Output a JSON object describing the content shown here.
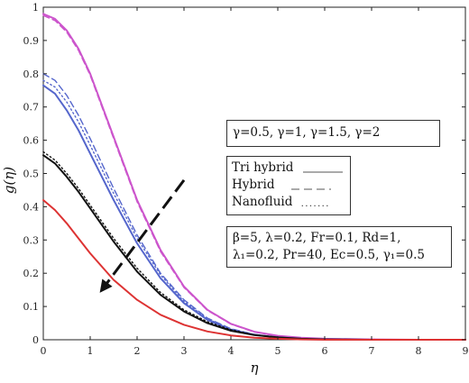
{
  "chart_data": {
    "type": "line",
    "xlabel": "η",
    "ylabel": "g(η)",
    "xlim": [
      0,
      9
    ],
    "ylim": [
      0,
      1
    ],
    "x_ticks": [
      "0",
      "1",
      "2",
      "3",
      "4",
      "5",
      "6",
      "7",
      "8",
      "9"
    ],
    "y_ticks": [
      "0",
      "0.1",
      "0.2",
      "0.3",
      "0.4",
      "0.5",
      "0.6",
      "0.7",
      "0.8",
      "0.9",
      "1"
    ],
    "grid": false,
    "series": [
      {
        "color": "#cc55cc",
        "style": "solid",
        "x": [
          0,
          0.25,
          0.5,
          0.75,
          1,
          1.5,
          2,
          2.5,
          3,
          3.5,
          4,
          4.5,
          5,
          5.5,
          6,
          7,
          8,
          9
        ],
        "values": [
          0.98,
          0.965,
          0.93,
          0.875,
          0.8,
          0.61,
          0.42,
          0.27,
          0.16,
          0.09,
          0.048,
          0.024,
          0.012,
          0.006,
          0.003,
          0.001,
          0.0,
          0.0
        ]
      },
      {
        "color": "#cc55cc",
        "style": "dashed",
        "x": [
          0,
          0.25,
          0.5,
          0.75,
          1,
          1.5,
          2,
          2.5,
          3,
          3.5,
          4,
          4.5,
          5,
          5.5,
          6,
          7,
          8,
          9
        ],
        "values": [
          0.975,
          0.96,
          0.925,
          0.87,
          0.795,
          0.605,
          0.415,
          0.265,
          0.157,
          0.088,
          0.047,
          0.023,
          0.011,
          0.005,
          0.003,
          0.001,
          0.0,
          0.0
        ]
      },
      {
        "color": "#5566cc",
        "style": "solid",
        "x": [
          0,
          0.25,
          0.5,
          0.75,
          1,
          1.5,
          2,
          2.5,
          3,
          3.5,
          4,
          4.5,
          5,
          5.5,
          6,
          7,
          8,
          9
        ],
        "values": [
          0.765,
          0.74,
          0.69,
          0.63,
          0.56,
          0.42,
          0.29,
          0.185,
          0.11,
          0.06,
          0.03,
          0.015,
          0.007,
          0.003,
          0.001,
          0.0,
          0.0,
          0.0
        ]
      },
      {
        "color": "#5566cc",
        "style": "dashed",
        "x": [
          0,
          0.25,
          0.5,
          0.75,
          1,
          1.5,
          2,
          2.5,
          3,
          3.5,
          4,
          4.5,
          5,
          5.5,
          6,
          7,
          8,
          9
        ],
        "values": [
          0.8,
          0.78,
          0.735,
          0.675,
          0.605,
          0.455,
          0.315,
          0.2,
          0.12,
          0.065,
          0.033,
          0.016,
          0.007,
          0.003,
          0.001,
          0.0,
          0.0,
          0.0
        ]
      },
      {
        "color": "#5566cc",
        "style": "dotted",
        "x": [
          0,
          0.25,
          0.5,
          0.75,
          1,
          1.5,
          2,
          2.5,
          3,
          3.5,
          4,
          4.5,
          5,
          5.5,
          6,
          7,
          8,
          9
        ],
        "values": [
          0.78,
          0.76,
          0.715,
          0.655,
          0.585,
          0.44,
          0.305,
          0.195,
          0.115,
          0.063,
          0.032,
          0.015,
          0.007,
          0.003,
          0.001,
          0.0,
          0.0,
          0.0
        ]
      },
      {
        "color": "#111111",
        "style": "solid",
        "x": [
          0,
          0.25,
          0.5,
          0.75,
          1,
          1.5,
          2,
          2.5,
          3,
          3.5,
          4,
          4.5,
          5,
          5.5,
          6,
          7,
          8,
          9
        ],
        "values": [
          0.555,
          0.53,
          0.49,
          0.445,
          0.395,
          0.295,
          0.205,
          0.135,
          0.085,
          0.05,
          0.027,
          0.014,
          0.007,
          0.003,
          0.001,
          0.0,
          0.0,
          0.0
        ]
      },
      {
        "color": "#111111",
        "style": "dotted",
        "x": [
          0,
          0.25,
          0.5,
          0.75,
          1,
          1.5,
          2,
          2.5,
          3,
          3.5,
          4,
          4.5,
          5,
          5.5,
          6,
          7,
          8,
          9
        ],
        "values": [
          0.565,
          0.54,
          0.5,
          0.455,
          0.405,
          0.305,
          0.215,
          0.142,
          0.09,
          0.054,
          0.03,
          0.015,
          0.007,
          0.003,
          0.001,
          0.0,
          0.0,
          0.0
        ]
      },
      {
        "color": "#dd3333",
        "style": "solid",
        "x": [
          0,
          0.25,
          0.5,
          0.75,
          1,
          1.5,
          2,
          2.5,
          3,
          3.5,
          4,
          4.5,
          5,
          5.5,
          6,
          7,
          8,
          9
        ],
        "values": [
          0.42,
          0.39,
          0.35,
          0.305,
          0.26,
          0.18,
          0.12,
          0.075,
          0.045,
          0.025,
          0.013,
          0.006,
          0.003,
          0.001,
          0.0,
          0.0,
          0.0,
          0.0
        ]
      }
    ],
    "annotations": {
      "gamma_text": "γ=0.5, γ=1, γ=1.5, γ=2",
      "legend": [
        {
          "label": "Tri hybrid",
          "style": "solid"
        },
        {
          "label": "Hybrid",
          "style": "dashed"
        },
        {
          "label": "Nanofluid",
          "style": "dotted"
        }
      ],
      "params_line1": "β=5,   λ=0.2,   Fr=0.1,    Rd=1,",
      "params_line2": "λ₁=0.2, Pr=40, Ec=0.5, γ₁=0.5",
      "arrow": {
        "from": [
          3.0,
          0.48
        ],
        "to": [
          1.25,
          0.15
        ]
      }
    }
  }
}
